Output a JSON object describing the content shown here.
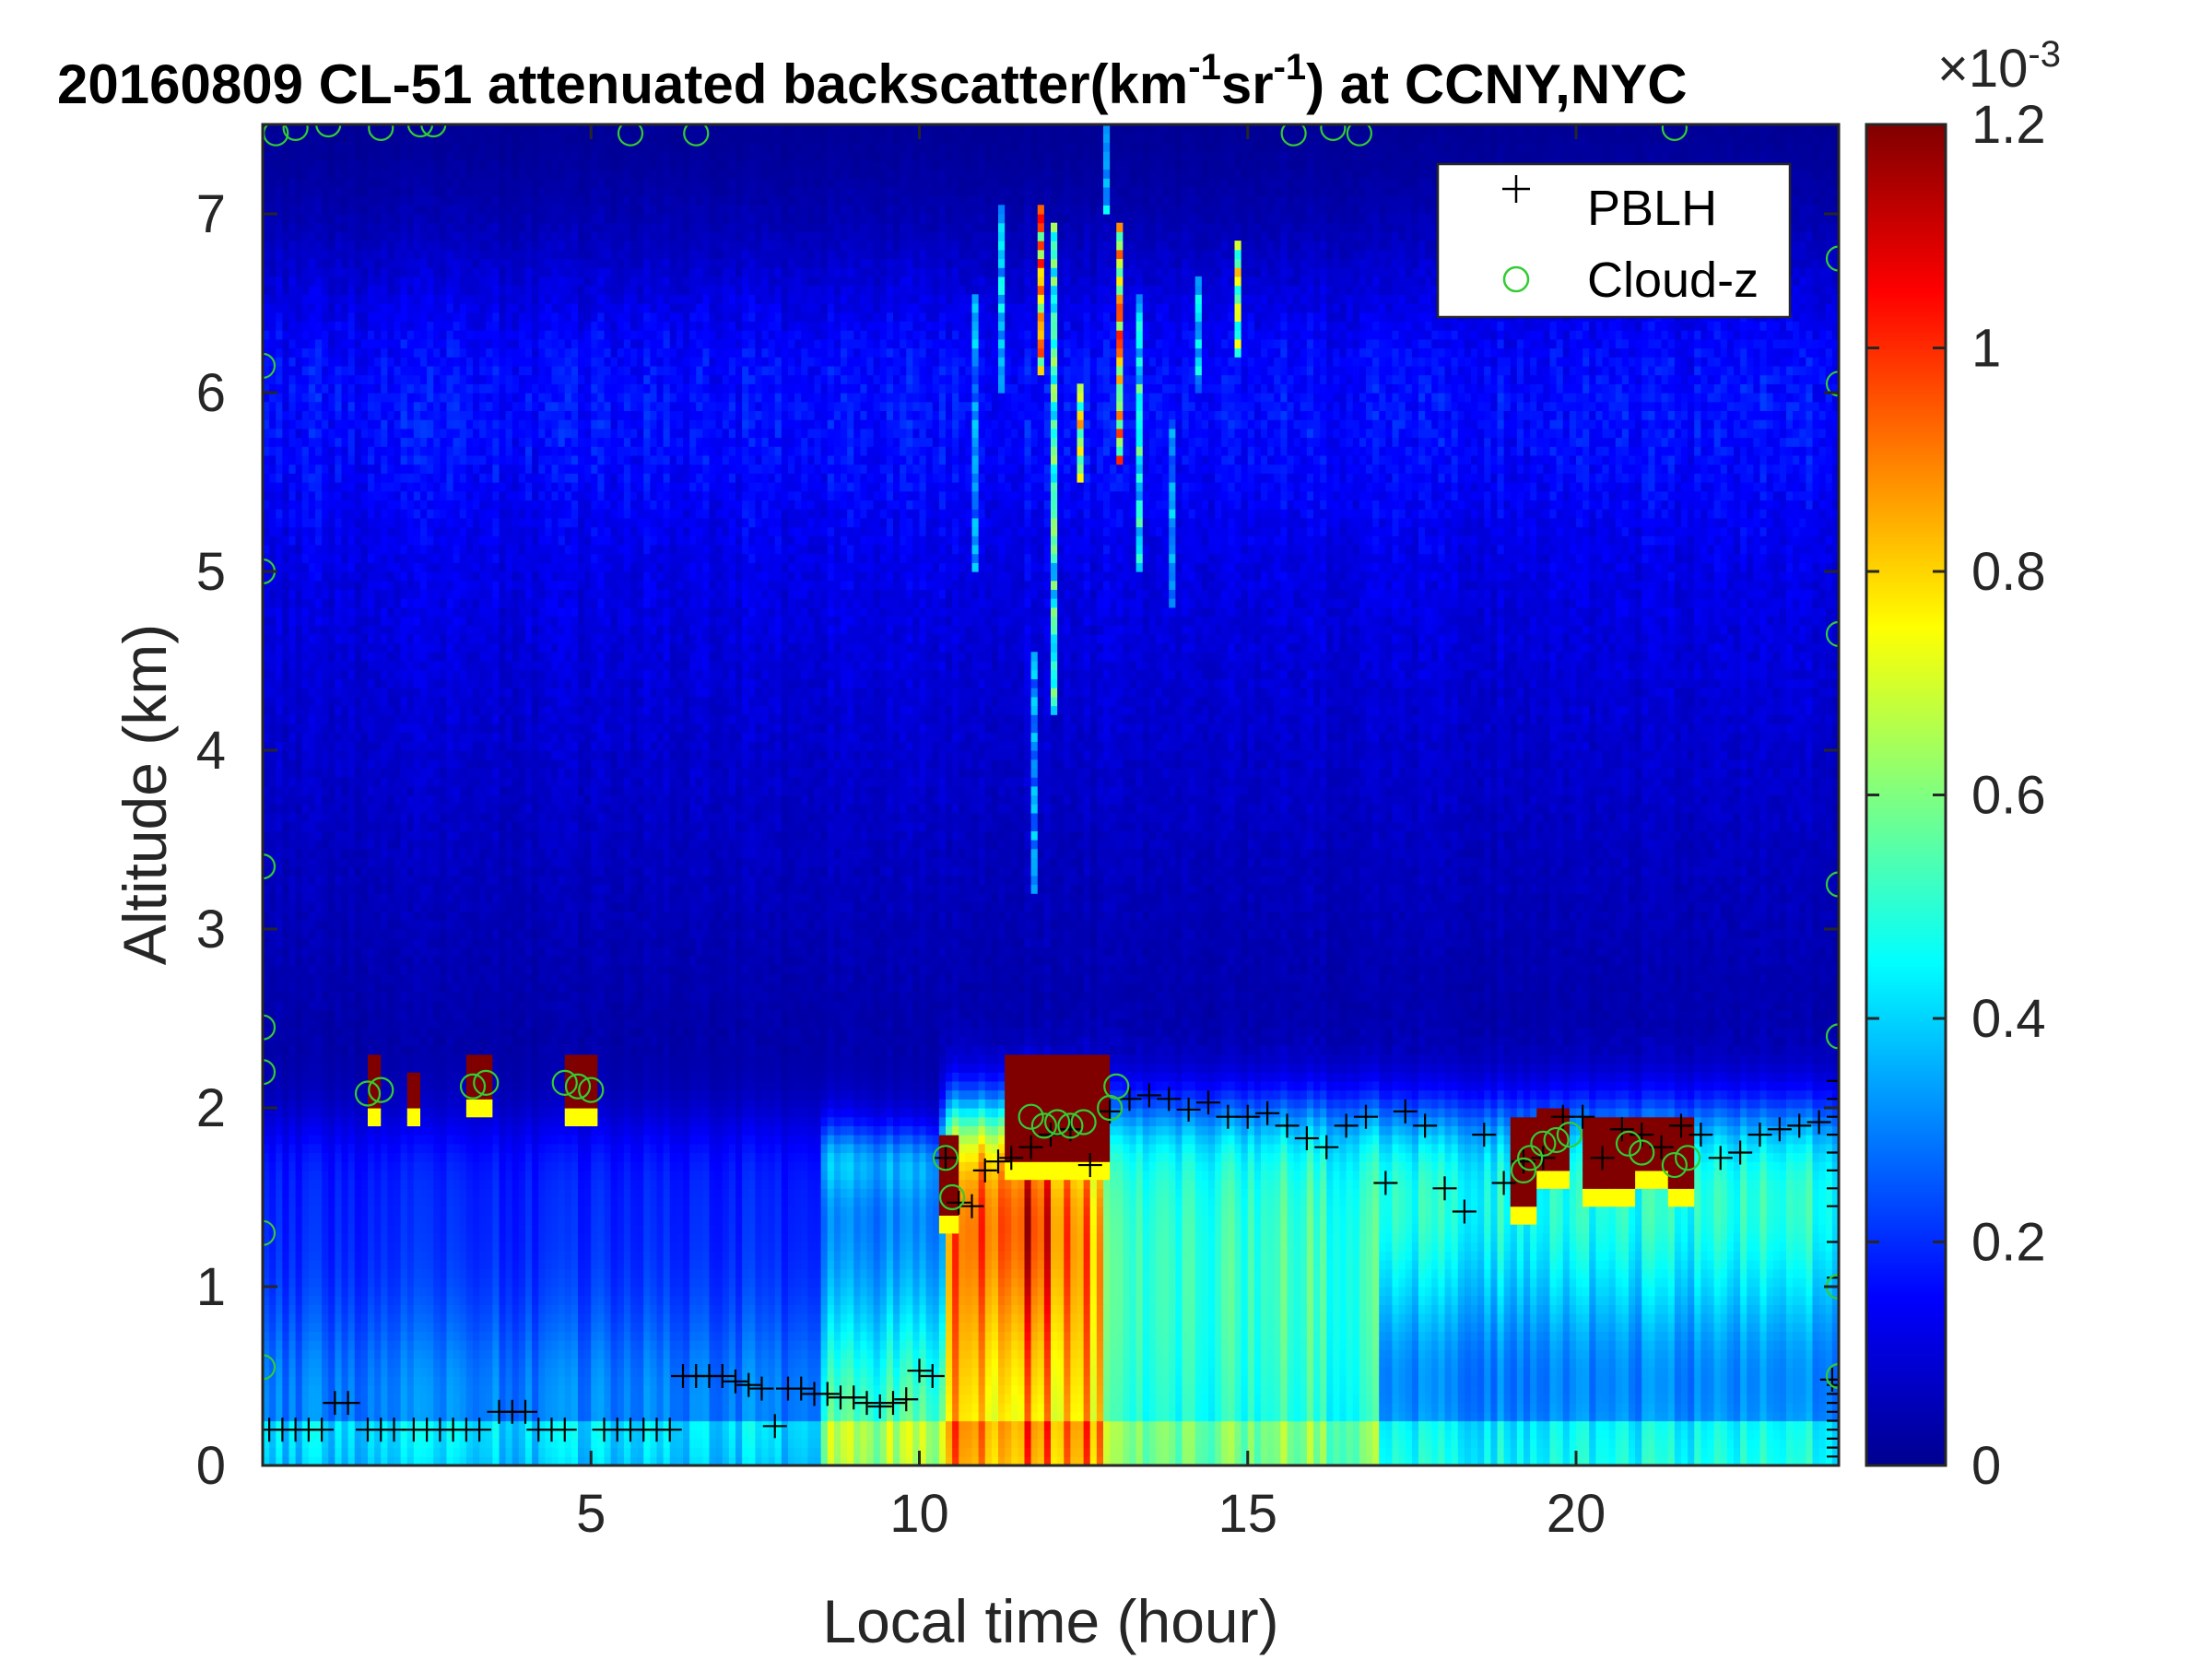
{
  "chart_data": {
    "type": "heatmap",
    "title": {
      "prefix": "20160809  CL-51 attenuated backscatter(km",
      "sup1": "-1",
      "mid": "sr",
      "sup2": "-1",
      "suffix": ") at CCNY,NYC"
    },
    "xlabel": "Local time (hour)",
    "ylabel": "Altitude (km)",
    "xlim": [
      0,
      24
    ],
    "ylim": [
      0,
      7.5
    ],
    "xticks": [
      5,
      10,
      15,
      20
    ],
    "yticks": [
      0,
      1,
      2,
      3,
      4,
      5,
      6,
      7
    ],
    "colorbar": {
      "colormap": "jet",
      "range": [
        0,
        1.2
      ],
      "exponent_label": "×10",
      "exponent": "-3",
      "ticks": [
        0,
        0.2,
        0.4,
        0.6,
        0.8,
        1,
        1.2
      ],
      "tick_labels": [
        "0",
        "0.2",
        "0.4",
        "0.6",
        "0.8",
        "1",
        "1.2"
      ]
    },
    "legend": {
      "position": "top-right",
      "entries": [
        {
          "label": "PBLH",
          "marker": "+",
          "color": "#000000"
        },
        {
          "label": "Cloud-z",
          "marker": "o",
          "color": "#33cc33"
        }
      ]
    },
    "series": [
      {
        "name": "PBLH",
        "marker": "+",
        "color": "#000000",
        "x": [
          0.1,
          0.3,
          0.5,
          0.7,
          0.9,
          1.1,
          1.3,
          1.6,
          1.8,
          2.0,
          2.3,
          2.5,
          2.7,
          2.9,
          3.1,
          3.3,
          3.6,
          3.8,
          4.0,
          4.2,
          4.4,
          4.6,
          5.2,
          5.4,
          5.6,
          5.8,
          6.0,
          6.2,
          6.4,
          6.6,
          6.8,
          7.0,
          7.2,
          7.4,
          7.6,
          7.8,
          8.0,
          8.2,
          8.4,
          8.6,
          8.8,
          9.0,
          9.2,
          9.4,
          9.6,
          9.8,
          10.0,
          10.2,
          10.4,
          10.6,
          10.8,
          11.0,
          11.2,
          11.4,
          11.7,
          12.0,
          12.3,
          12.6,
          12.9,
          13.2,
          13.5,
          13.8,
          14.1,
          14.4,
          14.7,
          15.0,
          15.3,
          15.6,
          15.9,
          16.2,
          16.5,
          16.8,
          17.1,
          17.4,
          17.7,
          18.0,
          18.3,
          18.6,
          18.9,
          19.2,
          19.5,
          19.8,
          20.1,
          20.4,
          20.7,
          21.0,
          21.3,
          21.6,
          21.9,
          22.2,
          22.5,
          22.8,
          23.1,
          23.4,
          23.7,
          23.9
        ],
        "y": [
          0.2,
          0.2,
          0.2,
          0.2,
          0.2,
          0.35,
          0.35,
          0.2,
          0.2,
          0.2,
          0.2,
          0.2,
          0.2,
          0.2,
          0.2,
          0.2,
          0.3,
          0.3,
          0.3,
          0.2,
          0.2,
          0.2,
          0.2,
          0.2,
          0.2,
          0.2,
          0.2,
          0.2,
          0.5,
          0.5,
          0.5,
          0.5,
          0.47,
          0.45,
          0.43,
          0.22,
          0.43,
          0.43,
          0.4,
          0.4,
          0.38,
          0.38,
          0.35,
          0.33,
          0.35,
          0.37,
          0.53,
          0.5,
          1.72,
          1.47,
          1.45,
          1.65,
          1.7,
          1.72,
          1.78,
          1.85,
          1.88,
          1.68,
          1.98,
          2.05,
          2.07,
          2.05,
          1.99,
          2.03,
          1.95,
          1.95,
          1.97,
          1.9,
          1.83,
          1.78,
          1.9,
          1.95,
          1.58,
          1.98,
          1.9,
          1.55,
          1.42,
          1.85,
          1.58,
          1.7,
          1.72,
          1.95,
          1.95,
          1.72,
          1.88,
          1.85,
          1.78,
          1.9,
          1.85,
          1.72,
          1.75,
          1.85,
          1.88,
          1.9,
          1.92,
          0.48
        ],
        "edge_x": 24.0,
        "edge_y": [
          0.05,
          0.1,
          0.15,
          0.2,
          0.25,
          0.3,
          0.35,
          0.4,
          0.45,
          1.05,
          1.25,
          1.45,
          1.55,
          1.65,
          1.75,
          1.85,
          1.95,
          2.05,
          2.15
        ]
      },
      {
        "name": "Cloud-z",
        "marker": "o",
        "color": "#33cc33",
        "x": [
          1.6,
          1.8,
          3.2,
          3.4,
          4.6,
          4.8,
          5.0,
          10.4,
          10.5,
          11.7,
          11.9,
          12.1,
          12.3,
          12.5,
          12.9,
          13.0,
          19.2,
          19.3,
          19.5,
          19.7,
          19.9,
          20.8,
          21.0,
          21.5,
          21.7,
          0.0,
          0.0,
          0.0,
          0.0,
          0.0,
          0.0,
          0.0,
          24.0,
          24.0,
          24.0,
          24.0,
          24.0,
          24.0,
          24.0,
          0.2,
          0.5,
          1.0,
          1.8,
          2.4,
          2.6,
          5.6,
          6.6,
          15.7,
          16.3,
          16.7,
          21.5
        ],
        "y": [
          2.08,
          2.1,
          2.12,
          2.14,
          2.14,
          2.12,
          2.1,
          1.72,
          1.5,
          1.95,
          1.9,
          1.92,
          1.9,
          1.92,
          2.0,
          2.12,
          1.65,
          1.72,
          1.8,
          1.82,
          1.85,
          1.8,
          1.75,
          1.68,
          1.72,
          6.15,
          5.0,
          3.35,
          2.45,
          2.2,
          1.3,
          0.55,
          6.75,
          6.05,
          4.65,
          3.25,
          2.4,
          1.0,
          0.5,
          7.45,
          7.48,
          7.5,
          7.48,
          7.5,
          7.5,
          7.45,
          7.45,
          7.45,
          7.48,
          7.45,
          7.48
        ]
      }
    ]
  }
}
